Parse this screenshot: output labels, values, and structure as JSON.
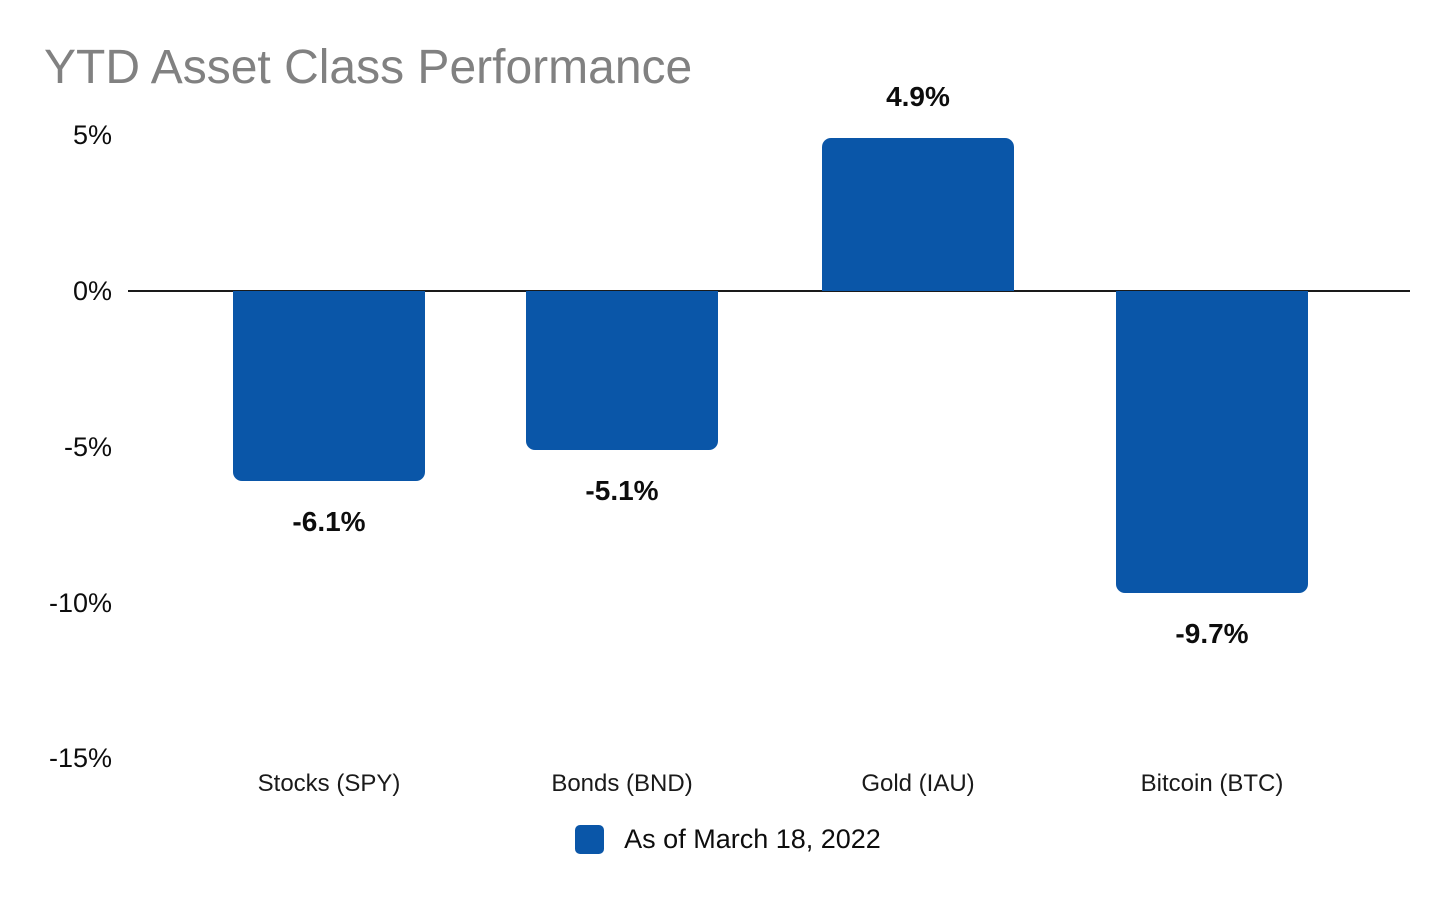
{
  "title": "YTD Asset Class Performance",
  "legend": {
    "label": "As of March 18, 2022",
    "swatch_color": "#0A56A8"
  },
  "colors": {
    "bar": "#0A56A8",
    "title": "#818181",
    "axis_line": "#1a1a1a",
    "label_text": "#0d0d0d"
  },
  "chart_data": {
    "type": "bar",
    "title": "YTD Asset Class Performance",
    "categories": [
      "Stocks (SPY)",
      "Bonds (BND)",
      "Gold (IAU)",
      "Bitcoin (BTC)"
    ],
    "series": [
      {
        "name": "As of March 18, 2022",
        "values": [
          -6.1,
          -5.1,
          4.9,
          -9.7
        ]
      }
    ],
    "value_labels": [
      "-6.1%",
      "-5.1%",
      "4.9%",
      "-9.7%"
    ],
    "xlabel": "",
    "ylabel": "",
    "ylim": [
      -15,
      5
    ],
    "y_ticks": [
      5,
      0,
      -5,
      -10,
      -15
    ],
    "y_tick_labels": [
      "5%",
      "0%",
      "-5%",
      "-10%",
      "-15%"
    ],
    "grid": false,
    "zero_baseline": true,
    "legend_position": "bottom-center",
    "bar_color": "#0A56A8"
  }
}
